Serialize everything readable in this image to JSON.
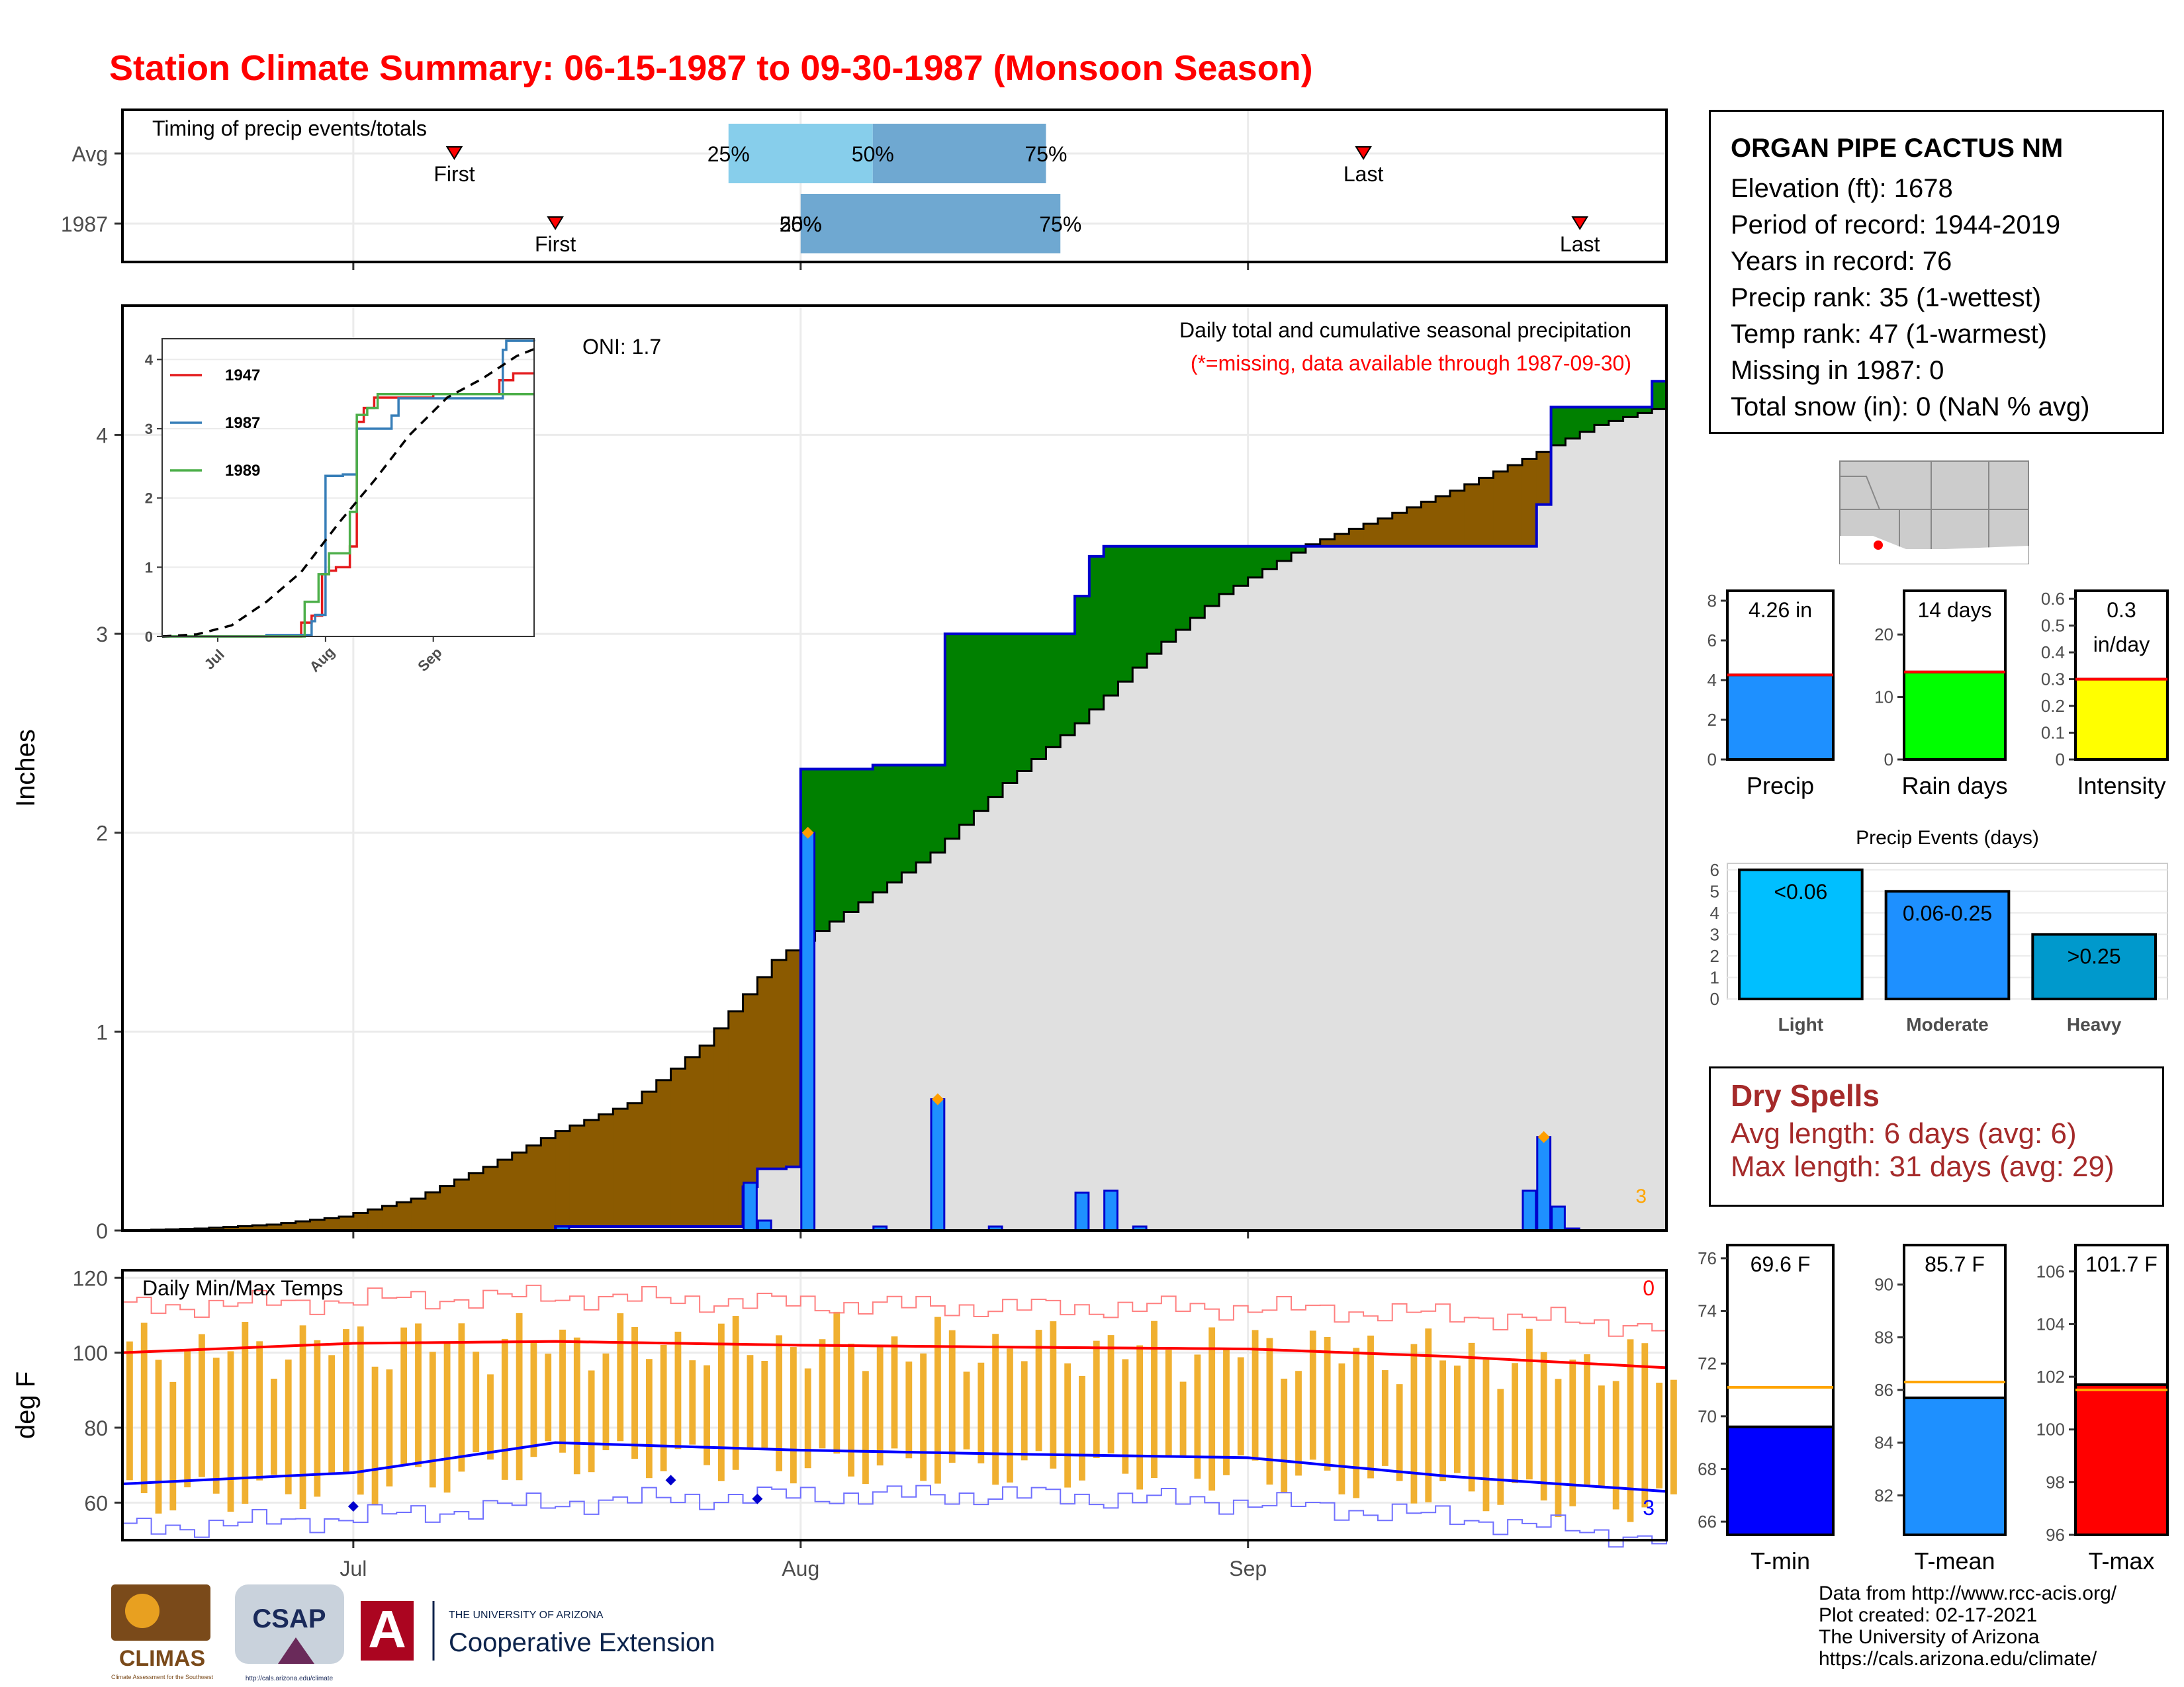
{
  "title": "Station Climate Summary: 06-15-1987 to 09-30-1987 (Monsoon Season)",
  "station": {
    "name": "ORGAN PIPE CACTUS NM",
    "lines": [
      "Elevation (ft): 1678",
      "Period of record: 1944-2019",
      "Years in record: 76",
      "Precip rank: 35 (1-wettest)",
      "Temp rank: 47 (1-warmest)",
      "Missing in 1987: 0",
      "Total snow (in): 0 (NaN % avg)"
    ]
  },
  "dry_spells": {
    "title": "Dry Spells",
    "avg": "Avg length: 6 days (avg: 6)",
    "max": "Max length: 31 days (avg: 29)"
  },
  "credits": [
    "Data from http://www.rcc-acis.org/",
    "Plot created: 02-17-2021",
    "The University of Arizona",
    "https://cals.arizona.edu/climate/"
  ],
  "logos": {
    "climas": "CLIMAS",
    "climas_sub": "Climate Assessment for the Southwest",
    "csap": "CSAP",
    "csap_url": "http://cals.arizona.edu/climate",
    "ua_small": "THE UNIVERSITY OF ARIZONA",
    "ua_big": "Cooperative Extension"
  },
  "colors": {
    "title": "#ff0000",
    "deficit": "#8b5a00",
    "surplus": "#008000",
    "normal_fill": "#e0e0e0",
    "precip_bar": "#1e90ff",
    "precip_line": "#0000cd",
    "tmax": "#ff0000",
    "tmin": "#0000ff",
    "temp_range": "#f0b030",
    "dry_spell": "#a52a2a"
  },
  "chart_data": [
    {
      "id": "timing",
      "type": "timeline",
      "title": "Timing of precip events/totals",
      "rows": [
        {
          "label": "Avg",
          "first": "1987-07-08",
          "last": "1987-09-09",
          "q25": "1987-07-27",
          "q50": "1987-08-06",
          "q75": "1987-08-18"
        },
        {
          "label": "1987",
          "first": "1987-07-15",
          "last": "1987-09-24",
          "q25": "1987-08-01",
          "q50": "1987-08-01",
          "q75": "1987-08-19"
        }
      ],
      "labels": {
        "first": "First",
        "last": "Last",
        "q25": "25%",
        "q50": "50%",
        "q75": "75%"
      }
    },
    {
      "id": "precip",
      "type": "area",
      "ylabel": "Inches",
      "ylim": [
        0,
        4.65
      ],
      "yticks": [
        0,
        1,
        2,
        3,
        4
      ],
      "xticks": [
        "Jul",
        "Aug",
        "Sep"
      ],
      "annotations": [
        "ONI: 1.7",
        "Daily total and cumulative seasonal precipitation",
        "(*=missing, data available through 1987-09-30)",
        "3"
      ],
      "normal_cumulative": {
        "x": [
          "06-15",
          "06-20",
          "06-25",
          "06-30",
          "07-05",
          "07-10",
          "07-15",
          "07-20",
          "07-25",
          "07-30",
          "08-05",
          "08-10",
          "08-15",
          "08-20",
          "08-25",
          "08-30",
          "09-05",
          "09-10",
          "09-15",
          "09-20",
          "09-25",
          "09-30"
        ],
        "y": [
          0.0,
          0.01,
          0.03,
          0.07,
          0.16,
          0.32,
          0.5,
          0.64,
          0.93,
          1.36,
          1.65,
          1.9,
          2.25,
          2.55,
          2.9,
          3.2,
          3.45,
          3.58,
          3.72,
          3.88,
          4.05,
          4.15
        ]
      },
      "observed_cumulative": {
        "x": [
          "06-15",
          "07-15",
          "07-28",
          "07-29",
          "07-31",
          "08-01",
          "08-05",
          "08-06",
          "08-10",
          "08-11",
          "08-14",
          "08-15",
          "08-16",
          "08-20",
          "08-21",
          "08-22",
          "09-20",
          "09-21",
          "09-22",
          "09-29",
          "09-30"
        ],
        "y": [
          0.0,
          0.02,
          0.22,
          0.31,
          0.32,
          2.32,
          2.32,
          2.34,
          2.34,
          3.0,
          3.0,
          3.0,
          3.0,
          3.19,
          3.39,
          3.44,
          3.44,
          3.65,
          4.14,
          4.27,
          4.26
        ]
      },
      "daily_precip": {
        "x": [
          "07-15",
          "07-28",
          "07-29",
          "08-01",
          "08-06",
          "08-10",
          "08-14",
          "08-20",
          "08-22",
          "08-24",
          "09-20",
          "09-21",
          "09-22",
          "09-23"
        ],
        "y": [
          0.02,
          0.24,
          0.05,
          2.0,
          0.02,
          0.66,
          0.02,
          0.19,
          0.2,
          0.02,
          0.2,
          0.47,
          0.12,
          0.01
        ]
      },
      "record_markers": {
        "x": [
          "08-01",
          "08-10",
          "09-21"
        ],
        "y": [
          2.0,
          0.66,
          0.47
        ]
      }
    },
    {
      "id": "inset",
      "type": "line",
      "ylim": [
        0,
        4.3
      ],
      "yticks": [
        0,
        1,
        2,
        3,
        4
      ],
      "xticks": [
        "Jul",
        "Aug",
        "Sep"
      ],
      "series": [
        {
          "name": "1947",
          "x": [
            "06-15",
            "07-20",
            "07-25",
            "07-28",
            "07-31",
            "08-02",
            "08-04",
            "08-08",
            "08-10",
            "08-12",
            "08-15",
            "08-20",
            "09-01",
            "09-20",
            "09-24",
            "09-30"
          ],
          "y": [
            0,
            0,
            0.2,
            0.3,
            0.9,
            0.95,
            1.0,
            1.3,
            3.1,
            3.3,
            3.45,
            3.45,
            3.5,
            3.7,
            3.8,
            3.8
          ]
        },
        {
          "name": "1987",
          "x": [
            "06-15",
            "07-15",
            "07-28",
            "07-29",
            "08-01",
            "08-06",
            "08-10",
            "08-11",
            "08-20",
            "08-22",
            "09-20",
            "09-21",
            "09-22",
            "09-30"
          ],
          "y": [
            0,
            0.02,
            0.22,
            0.31,
            2.32,
            2.34,
            3.0,
            3.0,
            3.19,
            3.44,
            3.44,
            4.14,
            4.27,
            4.26
          ]
        },
        {
          "name": "1989",
          "x": [
            "06-15",
            "07-20",
            "07-26",
            "07-30",
            "08-02",
            "08-08",
            "08-10",
            "08-13",
            "08-16",
            "08-25",
            "09-15",
            "09-30"
          ],
          "y": [
            0,
            0,
            0.5,
            0.9,
            1.2,
            1.8,
            3.2,
            3.3,
            3.5,
            3.5,
            3.5,
            3.5
          ]
        }
      ],
      "normal": {
        "x": [
          "06-15",
          "06-25",
          "07-05",
          "07-15",
          "07-25",
          "08-05",
          "08-15",
          "08-25",
          "09-05",
          "09-15",
          "09-25",
          "09-30"
        ],
        "y": [
          0,
          0.03,
          0.16,
          0.5,
          0.93,
          1.65,
          2.25,
          2.9,
          3.45,
          3.72,
          4.05,
          4.15
        ]
      }
    },
    {
      "id": "temps",
      "type": "line",
      "title": "Daily Min/Max Temps",
      "ylabel": "deg F",
      "ylim": [
        50,
        122
      ],
      "yticks": [
        60,
        80,
        100,
        120
      ],
      "xticks": [
        "Jul",
        "Aug",
        "Sep"
      ],
      "annotations": [
        "0",
        "3"
      ],
      "avg_tmax": {
        "x": [
          "06-15",
          "07-01",
          "07-15",
          "08-01",
          "08-15",
          "09-01",
          "09-15",
          "09-30"
        ],
        "y": [
          100,
          102.5,
          103,
          102,
          101.5,
          101,
          99,
          96
        ]
      },
      "avg_tmin": {
        "x": [
          "06-15",
          "07-01",
          "07-15",
          "08-01",
          "08-15",
          "09-01",
          "09-15",
          "09-30"
        ],
        "y": [
          65,
          68,
          76,
          74,
          73,
          72,
          67,
          63
        ]
      },
      "record_high": {
        "x": [
          "06-15",
          "07-01",
          "07-15",
          "08-01",
          "08-15",
          "09-01",
          "09-15",
          "09-30"
        ],
        "y": [
          112,
          114,
          115,
          113,
          112,
          112,
          110,
          107
        ]
      },
      "record_low": {
        "x": [
          "06-15",
          "07-01",
          "07-15",
          "08-01",
          "08-15",
          "09-01",
          "09-15",
          "09-30"
        ],
        "y": [
          53,
          56,
          60,
          62,
          62,
          60,
          56,
          50
        ]
      },
      "tmax_markers_note": "daily range bars",
      "low_markers": {
        "x": [
          "07-01",
          "07-23",
          "07-29"
        ],
        "y": [
          59,
          66,
          61
        ]
      }
    },
    {
      "id": "precip_total",
      "type": "bar",
      "categories": [
        "Precip"
      ],
      "values": [
        4.26
      ],
      "average": 4.26,
      "label": "4.26 in",
      "ylim": [
        0,
        8.5
      ],
      "yticks": [
        0,
        2,
        4,
        6,
        8
      ]
    },
    {
      "id": "rain_days",
      "type": "bar",
      "categories": [
        "Rain days"
      ],
      "values": [
        14
      ],
      "average": 14,
      "label": "14 days",
      "ylim": [
        0,
        27
      ],
      "yticks": [
        0,
        10,
        20
      ]
    },
    {
      "id": "intensity",
      "type": "bar",
      "categories": [
        "Intensity"
      ],
      "values": [
        0.3
      ],
      "average": 0.3,
      "label": "0.3 in/day",
      "ylim": [
        0,
        0.63
      ],
      "yticks": [
        0.0,
        0.1,
        0.2,
        0.3,
        0.4,
        0.5,
        0.6
      ]
    },
    {
      "id": "events",
      "type": "bar",
      "title": "Precip Events (days)",
      "categories": [
        "Light",
        "Moderate",
        "Heavy"
      ],
      "bar_labels": [
        "<0.06",
        "0.06-0.25",
        ">0.25"
      ],
      "values": [
        6,
        5,
        3
      ],
      "ylim": [
        0,
        6.3
      ],
      "yticks": [
        0,
        1,
        2,
        3,
        4,
        5,
        6
      ]
    },
    {
      "id": "tmin_avg",
      "type": "bar",
      "categories": [
        "T-min"
      ],
      "values": [
        69.6
      ],
      "average": 71.1,
      "label": "69.6 F",
      "ylim": [
        65.5,
        76.5
      ],
      "yticks": [
        66,
        68,
        70,
        72,
        74,
        76
      ]
    },
    {
      "id": "tmean_avg",
      "type": "bar",
      "categories": [
        "T-mean"
      ],
      "values": [
        85.7
      ],
      "average": 86.3,
      "label": "85.7 F",
      "ylim": [
        80.5,
        91.5
      ],
      "yticks": [
        82,
        84,
        86,
        88,
        90
      ]
    },
    {
      "id": "tmax_avg",
      "type": "bar",
      "categories": [
        "T-max"
      ],
      "values": [
        101.7
      ],
      "average": 101.5,
      "label": "101.7 F",
      "ylim": [
        96,
        107
      ],
      "yticks": [
        96,
        98,
        100,
        102,
        104,
        106
      ]
    }
  ]
}
